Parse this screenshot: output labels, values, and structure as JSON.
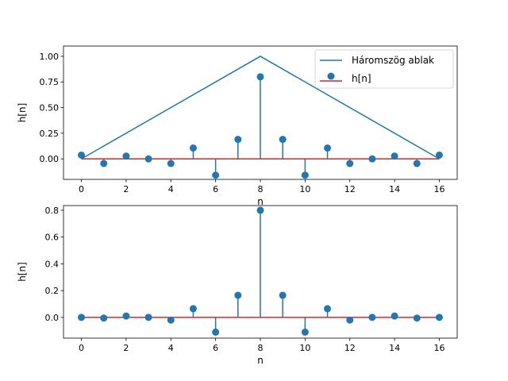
{
  "chart_data": [
    {
      "type": "stem",
      "xlabel": "n",
      "ylabel": "h[n]",
      "xlim": [
        -0.8,
        16.8
      ],
      "ylim": [
        -0.2,
        1.1
      ],
      "xticks": [
        0,
        2,
        4,
        6,
        8,
        10,
        12,
        14,
        16
      ],
      "yticks": [
        0.0,
        0.25,
        0.5,
        0.75,
        1.0
      ],
      "xtick_labels": [
        "0",
        "2",
        "4",
        "6",
        "8",
        "10",
        "12",
        "14",
        "16"
      ],
      "ytick_labels": [
        "0.00",
        "0.25",
        "0.50",
        "0.75",
        "1.00"
      ],
      "legend": {
        "placement": "top-right",
        "entries": [
          "Háromszög ablak",
          "h[n]"
        ]
      },
      "series": [
        {
          "name": "Háromszög ablak",
          "kind": "line",
          "color": "#1f77b4",
          "x": [
            0,
            8,
            16
          ],
          "y": [
            0,
            1.0,
            0
          ]
        },
        {
          "name": "h[n]",
          "kind": "stem",
          "marker_color": "#1f77b4",
          "baseline_color": "#d62728",
          "x": [
            0,
            1,
            2,
            3,
            4,
            5,
            6,
            7,
            8,
            9,
            10,
            11,
            12,
            13,
            14,
            15,
            16
          ],
          "y": [
            0.037,
            -0.045,
            0.027,
            0.0,
            -0.045,
            0.106,
            -0.159,
            0.19,
            0.8,
            0.19,
            -0.159,
            0.106,
            -0.045,
            0.0,
            0.027,
            -0.045,
            0.037
          ]
        }
      ]
    },
    {
      "type": "stem",
      "xlabel": "n",
      "ylabel": "h[n]",
      "xlim": [
        -0.8,
        16.8
      ],
      "ylim": [
        -0.155,
        0.835
      ],
      "xticks": [
        0,
        2,
        4,
        6,
        8,
        10,
        12,
        14,
        16
      ],
      "yticks": [
        0.0,
        0.2,
        0.4,
        0.6,
        0.8
      ],
      "xtick_labels": [
        "0",
        "2",
        "4",
        "6",
        "8",
        "10",
        "12",
        "14",
        "16"
      ],
      "ytick_labels": [
        "0.0",
        "0.2",
        "0.4",
        "0.6",
        "0.8"
      ],
      "series": [
        {
          "name": "",
          "kind": "stem",
          "marker_color": "#1f77b4",
          "baseline_color": "#d62728",
          "x": [
            0,
            1,
            2,
            3,
            4,
            5,
            6,
            7,
            8,
            9,
            10,
            11,
            12,
            13,
            14,
            15,
            16
          ],
          "y": [
            0.0,
            -0.005,
            0.01,
            0.0,
            -0.02,
            0.065,
            -0.11,
            0.165,
            0.8,
            0.165,
            -0.11,
            0.065,
            -0.02,
            0.0,
            0.01,
            -0.005,
            0.0
          ]
        }
      ]
    }
  ]
}
